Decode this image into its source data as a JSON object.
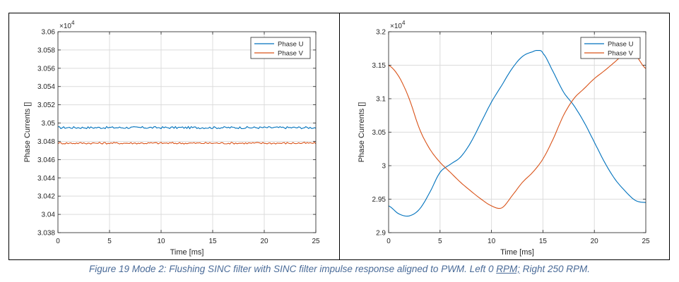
{
  "caption": {
    "pre": "Figure 19 Mode 2: Flushing SINC filter with SINC filter impulse response aligned to PWM. Left 0 ",
    "underlined": "RPM;",
    "post": " Right 250 RPM."
  },
  "chart_data": [
    {
      "type": "line",
      "title": "",
      "xlabel": "Time [ms]",
      "ylabel": "Phase Currents []",
      "y_exponent_label": "×10",
      "y_exponent": "4",
      "xlim": [
        0,
        25
      ],
      "ylim": [
        3.038,
        3.06
      ],
      "x_ticks": [
        0,
        5,
        10,
        15,
        20,
        25
      ],
      "x_tick_labels": [
        "0",
        "5",
        "10",
        "15",
        "20",
        "25"
      ],
      "y_ticks": [
        3.038,
        3.04,
        3.042,
        3.044,
        3.046,
        3.048,
        3.05,
        3.052,
        3.054,
        3.056,
        3.058,
        3.06
      ],
      "y_tick_labels": [
        "3.038",
        "3.04",
        "3.042",
        "3.044",
        "3.046",
        "3.048",
        "3.05",
        "3.052",
        "3.054",
        "3.056",
        "3.058",
        "3.06"
      ],
      "grid": true,
      "legend_position": "top-right",
      "series": [
        {
          "name": "Phase U",
          "color": "#0072bd",
          "mean": 3.0495,
          "noise": 0.00012,
          "x": [
            0,
            25
          ],
          "y": [
            3.0495,
            3.0495
          ]
        },
        {
          "name": "Phase V",
          "color": "#d95319",
          "mean": 3.0478,
          "noise": 0.0001,
          "x": [
            0,
            25
          ],
          "y": [
            3.0478,
            3.0478
          ]
        }
      ]
    },
    {
      "type": "line",
      "title": "",
      "xlabel": "Time [ms]",
      "ylabel": "Phase Currents []",
      "y_exponent_label": "×10",
      "y_exponent": "4",
      "xlim": [
        0,
        25
      ],
      "ylim": [
        2.9,
        3.2
      ],
      "x_ticks": [
        0,
        5,
        10,
        15,
        20,
        25
      ],
      "x_tick_labels": [
        "0",
        "5",
        "10",
        "15",
        "20",
        "25"
      ],
      "y_ticks": [
        2.9,
        2.95,
        3.0,
        3.05,
        3.1,
        3.15,
        3.2
      ],
      "y_tick_labels": [
        "2.9",
        "2.95",
        "3",
        "3.05",
        "3.1",
        "3.15",
        "3.2"
      ],
      "grid": true,
      "legend_position": "top-right",
      "series": [
        {
          "name": "Phase U",
          "color": "#0072bd",
          "x": [
            0,
            1,
            2,
            3,
            4,
            5,
            6,
            7,
            8,
            9,
            10,
            11,
            12,
            13,
            14,
            14.5,
            15,
            16,
            17,
            18,
            19,
            20,
            21,
            22,
            23,
            24,
            25
          ],
          "y": [
            2.94,
            2.928,
            2.925,
            2.935,
            2.96,
            2.99,
            3.002,
            3.013,
            3.035,
            3.065,
            3.095,
            3.12,
            3.145,
            3.163,
            3.17,
            3.172,
            3.168,
            3.14,
            3.11,
            3.09,
            3.065,
            3.035,
            3.005,
            2.98,
            2.962,
            2.948,
            2.945
          ]
        },
        {
          "name": "Phase V",
          "color": "#d95319",
          "x": [
            0,
            1,
            2,
            3,
            4,
            5,
            6,
            7,
            8,
            9,
            10,
            11,
            12,
            13,
            14,
            15,
            16,
            17,
            18,
            19,
            20,
            21,
            22,
            23,
            23.7,
            24,
            25
          ],
          "y": [
            3.15,
            3.133,
            3.1,
            3.055,
            3.025,
            3.005,
            2.99,
            2.975,
            2.962,
            2.95,
            2.94,
            2.937,
            2.955,
            2.975,
            2.99,
            3.01,
            3.04,
            3.075,
            3.1,
            3.115,
            3.13,
            3.142,
            3.155,
            3.168,
            3.172,
            3.165,
            3.145
          ]
        }
      ]
    }
  ]
}
